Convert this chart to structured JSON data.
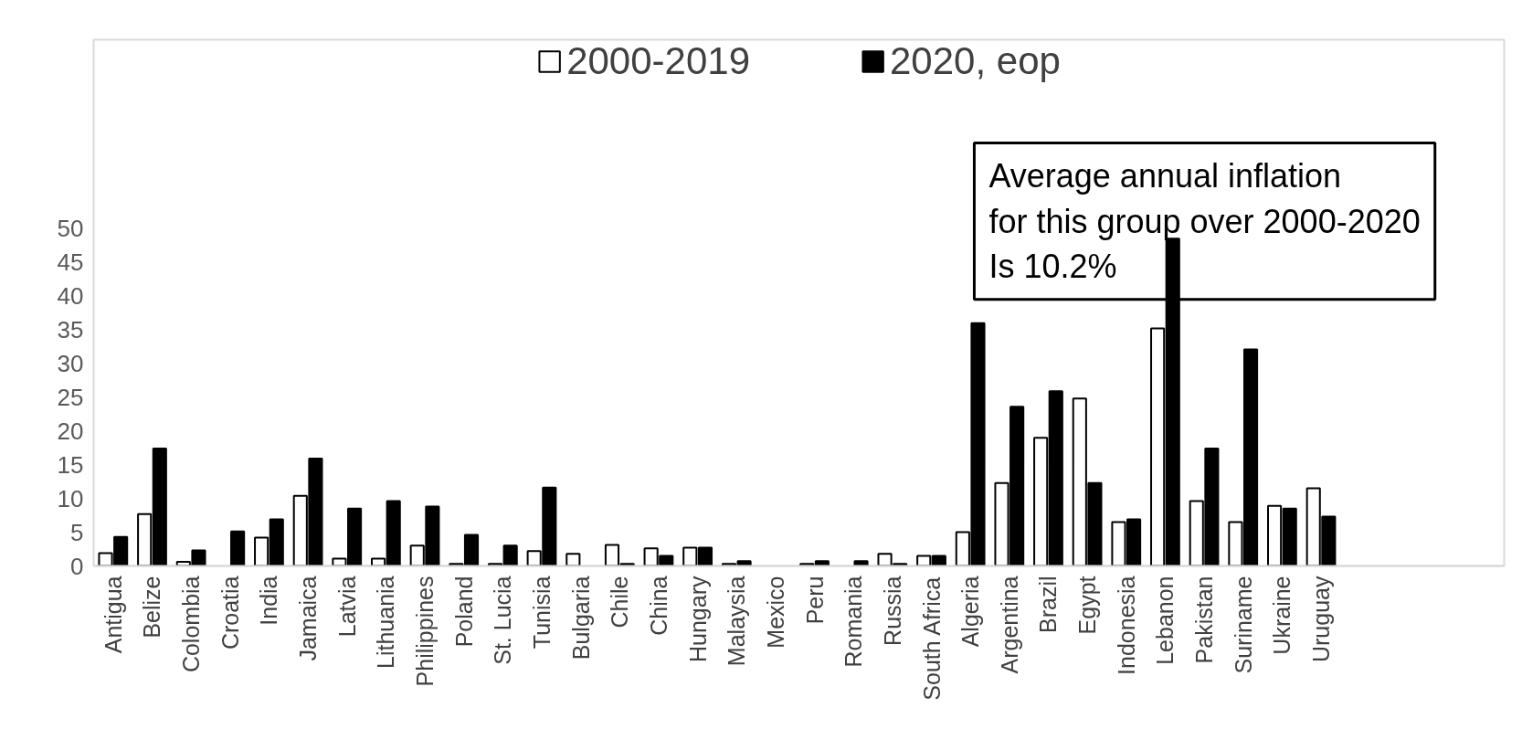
{
  "chart_data": {
    "type": "bar",
    "categories": [
      "Antigua",
      "Belize",
      "Colombia",
      "Croatia",
      "India",
      "Jamaica",
      "Latvia",
      "Lithuania",
      "Philippines",
      "Poland",
      "St. Lucia",
      "Tunisia",
      "Bulgaria",
      "Chile",
      "China",
      "Hungary",
      "Malaysia",
      "Mexico",
      "Peru",
      "Romania",
      "Russia",
      "South Africa",
      "Algeria",
      "Argentina",
      "Brazil",
      "Egypt",
      "Indonesia",
      "Lebanon",
      "Pakistan",
      "Suriname",
      "Ukraine",
      "Uruguay"
    ],
    "series": [
      {
        "name": "2000-2019",
        "color": "#ffffff",
        "values": [
          1.9,
          7.7,
          0.6,
          null,
          4.2,
          10.4,
          1.1,
          1.1,
          3.0,
          0.3,
          0.3,
          2.2,
          1.8,
          3.1,
          2.6,
          2.7,
          0.3,
          null,
          0.3,
          null,
          1.8,
          1.5,
          5.0,
          12.3,
          19.0,
          24.8,
          6.5,
          35.2,
          9.6,
          6.5,
          8.9,
          11.5
        ]
      },
      {
        "name": "2020, eop",
        "color": "#000000",
        "values": [
          4.3,
          17.4,
          2.3,
          5.1,
          6.9,
          15.9,
          8.5,
          9.6,
          8.8,
          4.6,
          3.0,
          11.6,
          null,
          0.3,
          1.5,
          2.7,
          0.7,
          null,
          0.7,
          0.7,
          0.3,
          1.5,
          36.0,
          23.6,
          25.9,
          12.3,
          6.9,
          48.5,
          17.4,
          32.1,
          8.5,
          7.3
        ]
      }
    ],
    "ylim": [
      0,
      78
    ],
    "yticks": [
      0,
      5,
      10,
      15,
      20,
      25,
      30,
      35,
      40,
      45,
      50
    ],
    "grid": false,
    "legend": "top",
    "annotations": [
      "Average annual inflation\nfor this group over 2000-2020\nIs 10.2%"
    ]
  }
}
